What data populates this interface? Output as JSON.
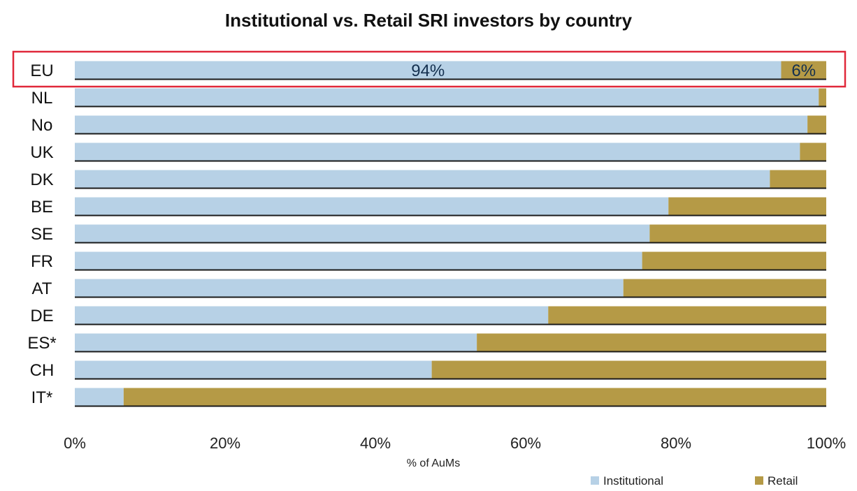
{
  "chart_data": {
    "type": "bar",
    "orientation": "horizontal",
    "stacked": true,
    "title": "Institutional vs. Retail SRI investors by country",
    "xlabel": "% of AuMs",
    "ylabel": "",
    "xlim": [
      0,
      100
    ],
    "xticks": [
      "0%",
      "20%",
      "40%",
      "60%",
      "80%",
      "100%"
    ],
    "categories": [
      "EU",
      "NL",
      "No",
      "UK",
      "DK",
      "BE",
      "SE",
      "FR",
      "AT",
      "DE",
      "ES*",
      "CH",
      "IT*"
    ],
    "series": [
      {
        "name": "Institutional",
        "color": "#b7d1e6",
        "values": [
          94,
          99,
          97.5,
          96.5,
          92.5,
          79,
          76.5,
          75.5,
          73,
          63,
          53.5,
          47.5,
          6.5
        ]
      },
      {
        "name": "Retail",
        "color": "#b59a46",
        "values": [
          6,
          1,
          2.5,
          3.5,
          7.5,
          21,
          23.5,
          24.5,
          27,
          37,
          46.5,
          52.5,
          93.5
        ]
      }
    ],
    "data_labels": [
      {
        "category": "EU",
        "series": "Institutional",
        "text": "94%"
      },
      {
        "category": "EU",
        "series": "Retail",
        "text": "6%"
      }
    ],
    "highlight": {
      "category": "EU",
      "color": "#e0283a"
    },
    "legend": {
      "position": "bottom-right"
    },
    "grid": false
  }
}
